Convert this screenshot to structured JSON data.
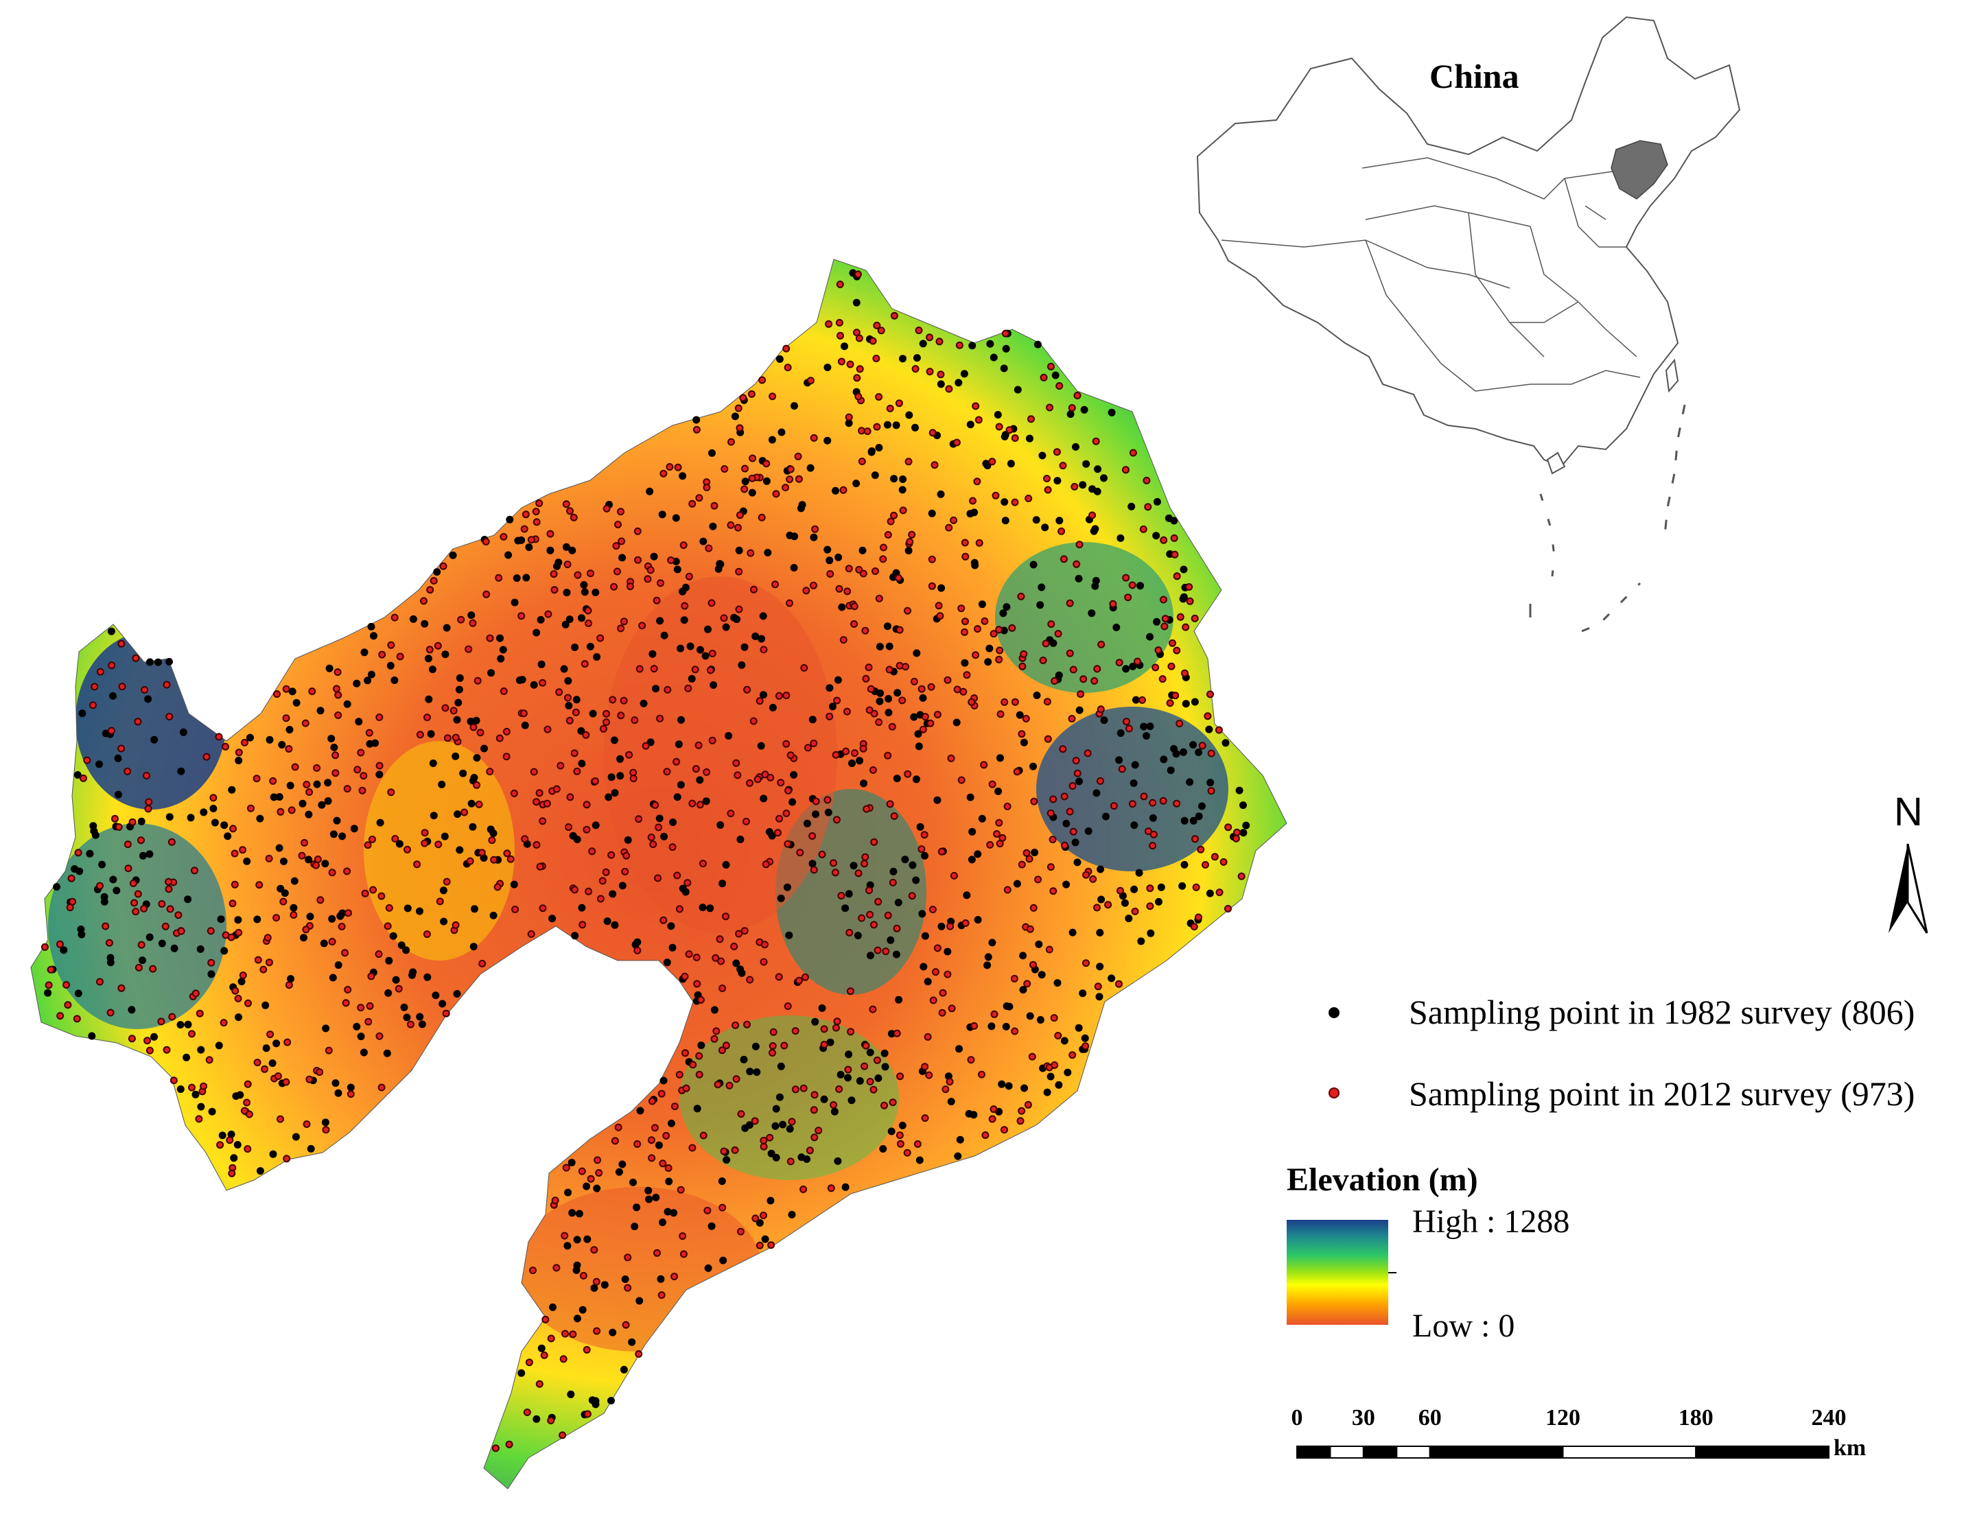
{
  "inset": {
    "title": "China"
  },
  "north_arrow": {
    "label": "N"
  },
  "legend": {
    "items": [
      {
        "label": "Sampling point in 1982 survey (806)",
        "color": "#000000"
      },
      {
        "label": "Sampling point in 2012 survey (973)",
        "color": "#e02020"
      }
    ]
  },
  "elevation_legend": {
    "title": "Elevation (m)",
    "high_label": "High : 1288",
    "low_label": "Low : 0",
    "high_value": 1288,
    "low_value": 0,
    "unit": "m",
    "colors": [
      "#1a3f8a",
      "#1e8a8e",
      "#2ec866",
      "#8fe01a",
      "#ffff00",
      "#ffa500",
      "#e8532a"
    ]
  },
  "scale_bar": {
    "ticks": [
      "0",
      "30",
      "60",
      "120",
      "180",
      "240"
    ],
    "unit": "km"
  },
  "colors": {
    "survey_1982": "#000000",
    "survey_2012": "#e02020",
    "elev_high": "#1a3f8a",
    "elev_mid": "#2ec866",
    "elev_low": "#e8532a",
    "highlighted_region": "#6e6e6e"
  }
}
